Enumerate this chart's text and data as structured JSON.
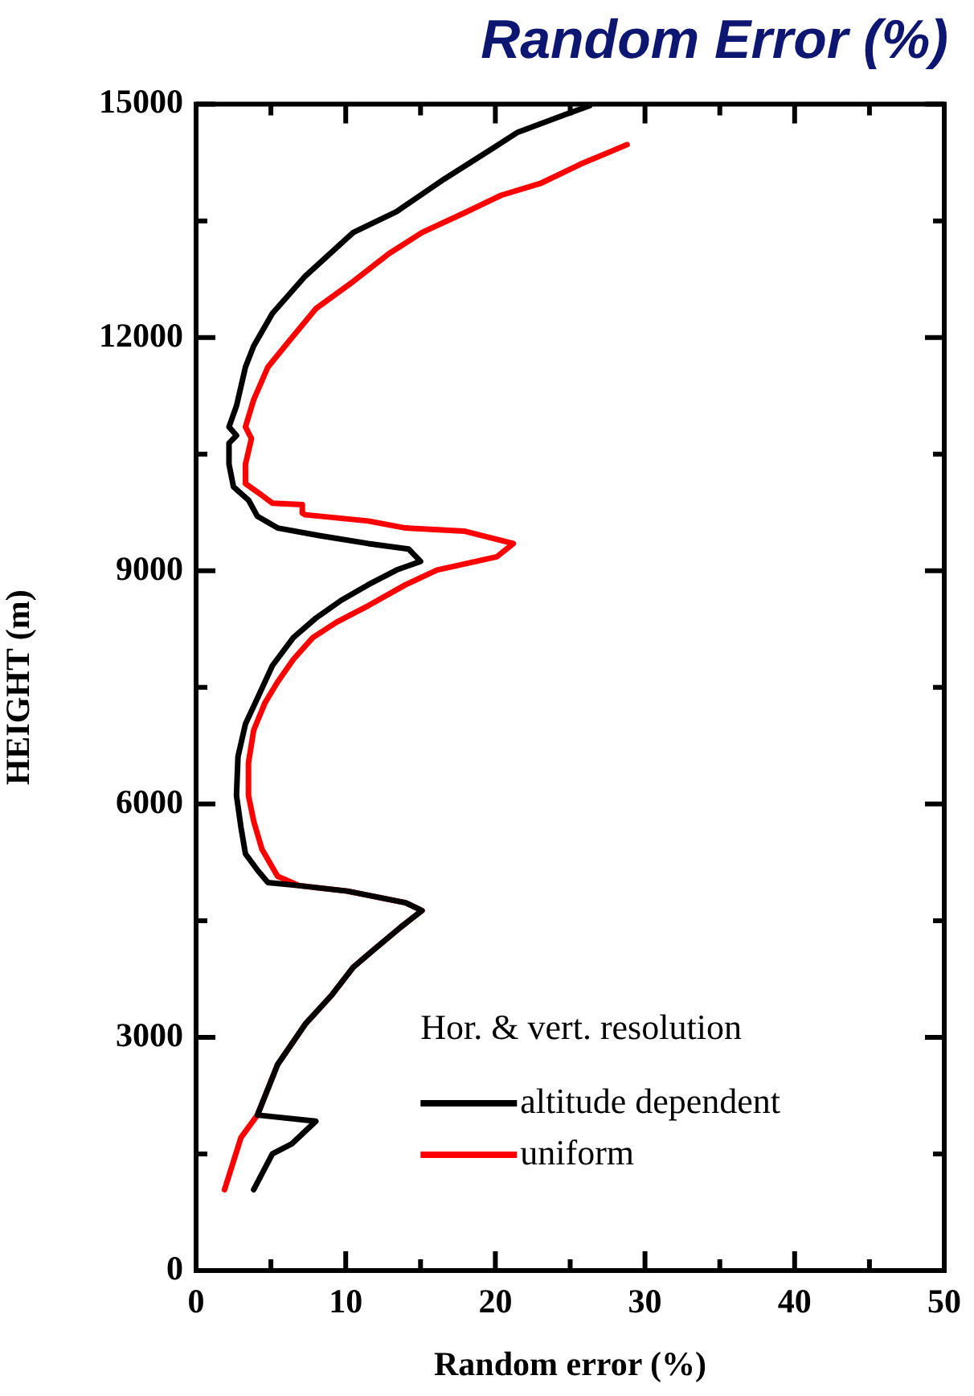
{
  "chart_data": {
    "type": "line",
    "title": "Random Error (%)",
    "xlabel": "Random error (%)",
    "ylabel": "HEIGHT (m)",
    "legend_title": "Hor. & vert. resolution",
    "legend": "bottom right",
    "grid": false,
    "marker": "none",
    "line_style": "solid",
    "xlim": [
      0,
      50
    ],
    "xticks": [
      0,
      {
        "value": 5,
        "label": null
      },
      10,
      {
        "value": 15,
        "label": null
      },
      20,
      {
        "value": 25,
        "label": null
      },
      30,
      {
        "value": 35,
        "label": null
      },
      40,
      {
        "value": 45,
        "label": null
      },
      50
    ],
    "ylim": [
      0,
      15000
    ],
    "yticks": [
      0,
      {
        "value": 1500,
        "label": null
      },
      3000,
      {
        "value": 4500,
        "label": null
      },
      6000,
      {
        "value": 7500,
        "label": null
      },
      9000,
      {
        "value": 10500,
        "label": null
      },
      12000,
      {
        "value": 13500,
        "label": null
      },
      15000
    ],
    "series": [
      {
        "name": "altitude dependent",
        "color": "#000000",
        "x": [
          3.85,
          5.1,
          6.4,
          8.0,
          4.1,
          5.45,
          7.3,
          9.1,
          10.5,
          11.9,
          13.7,
          15.1,
          14.0,
          10.1,
          6.9,
          4.8,
          4.1,
          3.3,
          3.0,
          2.7,
          2.8,
          3.3,
          4.1,
          5.1,
          6.5,
          8.0,
          9.7,
          11.5,
          13.4,
          15.0,
          14.2,
          11.5,
          8.3,
          5.45,
          4.1,
          3.5,
          2.5,
          2.2,
          2.2,
          2.7,
          2.2,
          2.7,
          3.3,
          3.85,
          5.1,
          7.3,
          10.5,
          13.4,
          16.6,
          19.8,
          21.5,
          24.7,
          26.3
        ],
        "values": [
          1040,
          1500,
          1630,
          1920,
          2000,
          2650,
          3170,
          3550,
          3900,
          4130,
          4420,
          4630,
          4730,
          4880,
          4950,
          4990,
          5150,
          5360,
          5700,
          6110,
          6610,
          7030,
          7360,
          7780,
          8140,
          8390,
          8620,
          8820,
          9010,
          9120,
          9280,
          9350,
          9450,
          9550,
          9700,
          9910,
          10080,
          10370,
          10640,
          10740,
          10850,
          11120,
          11620,
          11890,
          12310,
          12790,
          13350,
          13620,
          14040,
          14430,
          14640,
          14870,
          14980
        ]
      },
      {
        "name": "uniform",
        "color": "#ff0000",
        "x": [
          1.9,
          3.0,
          4.1,
          5.45,
          7.3,
          9.1,
          10.5,
          11.9,
          13.7,
          15.1,
          14.0,
          10.1,
          6.9,
          5.45,
          4.4,
          3.85,
          3.5,
          3.5,
          3.85,
          4.6,
          5.45,
          6.5,
          7.8,
          9.4,
          11.5,
          14.0,
          16.1,
          20.1,
          21.2,
          17.9,
          14.0,
          11.5,
          7.3,
          7.1,
          7.1,
          5.1,
          4.4,
          3.3,
          3.3,
          3.7,
          3.3,
          3.85,
          4.8,
          6.2,
          8.0,
          10.5,
          12.9,
          15.1,
          17.9,
          20.4,
          23.0,
          25.7,
          28.8
        ],
        "values": [
          1040,
          1710,
          2000,
          2650,
          3170,
          3550,
          3900,
          4130,
          4420,
          4630,
          4730,
          4880,
          4950,
          5070,
          5420,
          5780,
          6110,
          6530,
          6950,
          7300,
          7570,
          7860,
          8140,
          8340,
          8550,
          8820,
          9010,
          9180,
          9350,
          9510,
          9550,
          9640,
          9720,
          9740,
          9850,
          9870,
          9970,
          10120,
          10370,
          10700,
          10850,
          11200,
          11620,
          11950,
          12370,
          12720,
          13080,
          13350,
          13600,
          13830,
          13980,
          14230,
          14480
        ]
      }
    ]
  }
}
